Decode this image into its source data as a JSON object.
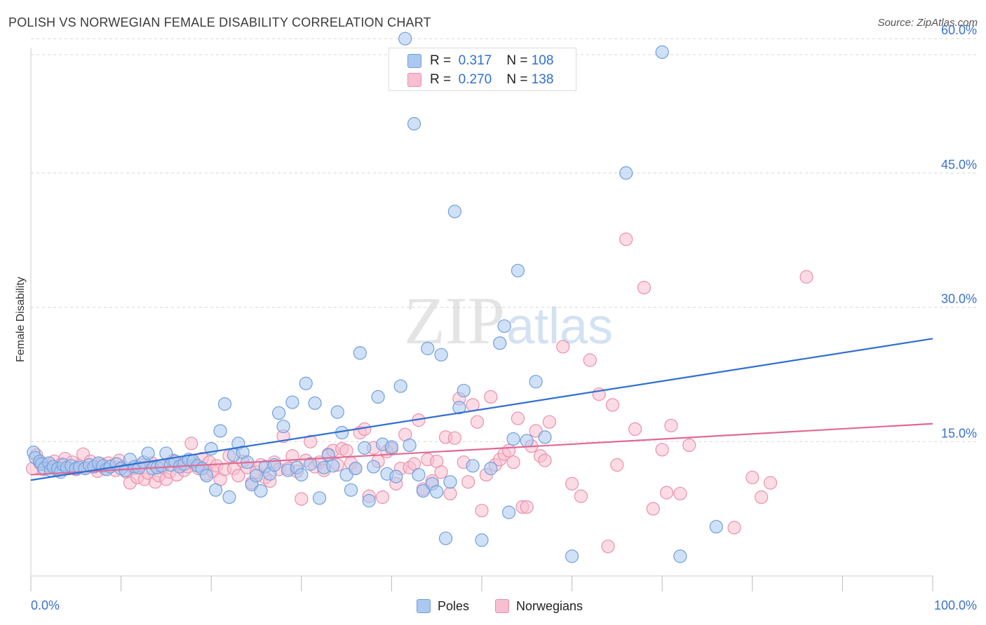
{
  "header": {
    "title": "POLISH VS NORWEGIAN FEMALE DISABILITY CORRELATION CHART",
    "source": "Source: ZipAtlas.com"
  },
  "watermark": {
    "zip": "ZIP",
    "atlas": "atlas"
  },
  "colors": {
    "poles_fill": "#aac8f0",
    "poles_stroke": "#6f9fdc",
    "poles_line": "#2f6fd1",
    "norw_fill": "#f7bfd0",
    "norw_stroke": "#ec8fab",
    "norw_line": "#e06a95",
    "tick_label": "#3a72cc",
    "grid": "#d8d8d8"
  },
  "legend_top": {
    "poles": {
      "r_label": "R =",
      "r_value": "0.317",
      "n_label": "N =",
      "n_value": "108"
    },
    "norwegians": {
      "r_label": "R =",
      "r_value": "0.270",
      "n_label": "N =",
      "n_value": "138"
    }
  },
  "legend_bottom": {
    "poles": "Poles",
    "norwegians": "Norwegians"
  },
  "chart_data": {
    "type": "scatter",
    "title": "POLISH VS NORWEGIAN FEMALE DISABILITY CORRELATION CHART",
    "xlabel": "",
    "ylabel": "Female Disability",
    "xlim": [
      0,
      100
    ],
    "ylim": [
      0,
      62
    ],
    "x_tick_labels": [
      "0.0%",
      "100.0%"
    ],
    "y_ticks": [
      15,
      30,
      45,
      60
    ],
    "y_tick_labels": [
      "15.0%",
      "30.0%",
      "45.0%",
      "60.0%"
    ],
    "grid": "horizontal dashed",
    "legend_placement": "top-center and bottom",
    "series": [
      {
        "name": "Poles",
        "R": 0.317,
        "N": 108,
        "trend": {
          "x": [
            0,
            100
          ],
          "y": [
            10.7,
            26.5
          ]
        },
        "points": [
          [
            0.3,
            13.8
          ],
          [
            0.5,
            13.2
          ],
          [
            1,
            12.8
          ],
          [
            1.2,
            12.5
          ],
          [
            1.5,
            12.0
          ],
          [
            2,
            12.6
          ],
          [
            2.2,
            11.8
          ],
          [
            2.5,
            12.2
          ],
          [
            3,
            12.0
          ],
          [
            3.3,
            11.6
          ],
          [
            3.6,
            12.4
          ],
          [
            4,
            12.1
          ],
          [
            4.5,
            12.3
          ],
          [
            5,
            12.0
          ],
          [
            5.4,
            12.1
          ],
          [
            6,
            12.0
          ],
          [
            6.5,
            12.4
          ],
          [
            7,
            12.2
          ],
          [
            7.5,
            12.6
          ],
          [
            8,
            12.3
          ],
          [
            8.4,
            11.9
          ],
          [
            8.8,
            12.2
          ],
          [
            9.5,
            12.5
          ],
          [
            10,
            12.0
          ],
          [
            10.5,
            11.8
          ],
          [
            11,
            13.0
          ],
          [
            11.5,
            12.2
          ],
          [
            12,
            12.1
          ],
          [
            12.5,
            12.7
          ],
          [
            13,
            13.7
          ],
          [
            13.5,
            12.0
          ],
          [
            14,
            12.1
          ],
          [
            14.5,
            12.3
          ],
          [
            15,
            13.7
          ],
          [
            15.5,
            12.4
          ],
          [
            16,
            12.8
          ],
          [
            16.5,
            12.2
          ],
          [
            17,
            12.5
          ],
          [
            17.5,
            13.0
          ],
          [
            18,
            12.8
          ],
          [
            18.5,
            12.3
          ],
          [
            19,
            12.0
          ],
          [
            19.5,
            11.2
          ],
          [
            20,
            14.2
          ],
          [
            20.5,
            9.6
          ],
          [
            21,
            16.2
          ],
          [
            21.5,
            19.2
          ],
          [
            22,
            8.8
          ],
          [
            22.5,
            13.5
          ],
          [
            23,
            14.8
          ],
          [
            23.5,
            13.8
          ],
          [
            24,
            12.7
          ],
          [
            24.5,
            10.2
          ],
          [
            25,
            11.2
          ],
          [
            25.5,
            9.5
          ],
          [
            26,
            12.2
          ],
          [
            26.5,
            11.4
          ],
          [
            27,
            12.4
          ],
          [
            27.5,
            18.2
          ],
          [
            28,
            16.7
          ],
          [
            28.5,
            11.8
          ],
          [
            29,
            19.4
          ],
          [
            29.5,
            12.1
          ],
          [
            30,
            11.3
          ],
          [
            30.5,
            21.5
          ],
          [
            31,
            12.5
          ],
          [
            31.5,
            19.3
          ],
          [
            32,
            8.7
          ],
          [
            32.5,
            12.1
          ],
          [
            33,
            13.5
          ],
          [
            33.5,
            12.3
          ],
          [
            34,
            18.3
          ],
          [
            34.5,
            16.0
          ],
          [
            35,
            11.3
          ],
          [
            35.5,
            9.6
          ],
          [
            36,
            12.0
          ],
          [
            36.5,
            24.9
          ],
          [
            37,
            14.3
          ],
          [
            37.5,
            8.4
          ],
          [
            38,
            12.2
          ],
          [
            38.5,
            20.0
          ],
          [
            39,
            14.7
          ],
          [
            39.5,
            11.4
          ],
          [
            40,
            14.4
          ],
          [
            40.5,
            11.1
          ],
          [
            41,
            21.2
          ],
          [
            41.5,
            60.0
          ],
          [
            42,
            14.6
          ],
          [
            42.5,
            50.5
          ],
          [
            43,
            11.3
          ],
          [
            43.5,
            9.5
          ],
          [
            44,
            25.4
          ],
          [
            44.5,
            10.3
          ],
          [
            45,
            9.4
          ],
          [
            45.5,
            24.7
          ],
          [
            46,
            4.2
          ],
          [
            46.5,
            10.5
          ],
          [
            47,
            40.7
          ],
          [
            47.5,
            18.8
          ],
          [
            48,
            20.7
          ],
          [
            49,
            12.3
          ],
          [
            50,
            4.0
          ],
          [
            51,
            12.0
          ],
          [
            52,
            26.0
          ],
          [
            52.5,
            27.9
          ],
          [
            53,
            7.1
          ],
          [
            53.5,
            15.3
          ],
          [
            54,
            34.1
          ],
          [
            55,
            15.1
          ],
          [
            56,
            21.7
          ],
          [
            57,
            15.5
          ],
          [
            60,
            2.2
          ],
          [
            66,
            45.0
          ],
          [
            70,
            58.5
          ],
          [
            72,
            2.2
          ],
          [
            76,
            5.5
          ]
        ]
      },
      {
        "name": "Norwegians",
        "R": 0.27,
        "N": 138,
        "trend": {
          "x": [
            0,
            100
          ],
          "y": [
            11.3,
            17.0
          ]
        },
        "points": [
          [
            0.2,
            12.0
          ],
          [
            0.6,
            13.5
          ],
          [
            1,
            12.6
          ],
          [
            1.4,
            11.9
          ],
          [
            1.8,
            12.4
          ],
          [
            2.2,
            12.1
          ],
          [
            2.6,
            12.8
          ],
          [
            3,
            11.8
          ],
          [
            3.4,
            12.5
          ],
          [
            3.8,
            13.1
          ],
          [
            4.2,
            12.0
          ],
          [
            4.6,
            12.7
          ],
          [
            5,
            11.9
          ],
          [
            5.4,
            12.3
          ],
          [
            5.8,
            13.6
          ],
          [
            6.2,
            12.1
          ],
          [
            6.6,
            12.8
          ],
          [
            7,
            12.2
          ],
          [
            7.4,
            11.7
          ],
          [
            7.8,
            12.5
          ],
          [
            8.2,
            12.0
          ],
          [
            8.6,
            12.6
          ],
          [
            9,
            12.3
          ],
          [
            9.4,
            11.8
          ],
          [
            9.8,
            12.9
          ],
          [
            10.2,
            12.2
          ],
          [
            10.6,
            11.6
          ],
          [
            11,
            10.4
          ],
          [
            11.4,
            12.0
          ],
          [
            11.8,
            11.0
          ],
          [
            12.2,
            12.4
          ],
          [
            12.6,
            10.8
          ],
          [
            13,
            11.5
          ],
          [
            13.4,
            12.6
          ],
          [
            13.8,
            10.5
          ],
          [
            14.2,
            11.2
          ],
          [
            14.6,
            12.1
          ],
          [
            15,
            10.8
          ],
          [
            15.4,
            11.6
          ],
          [
            15.8,
            12.9
          ],
          [
            16.2,
            11.3
          ],
          [
            16.6,
            12.4
          ],
          [
            17,
            11.8
          ],
          [
            17.4,
            12.2
          ],
          [
            17.8,
            14.8
          ],
          [
            18.2,
            12.5
          ],
          [
            18.6,
            12.0
          ],
          [
            19,
            13.1
          ],
          [
            19.4,
            11.4
          ],
          [
            19.8,
            12.7
          ],
          [
            20.2,
            11.7
          ],
          [
            20.6,
            12.3
          ],
          [
            21,
            10.8
          ],
          [
            21.5,
            11.9
          ],
          [
            22,
            13.4
          ],
          [
            22.5,
            12.0
          ],
          [
            23,
            11.2
          ],
          [
            23.5,
            12.8
          ],
          [
            24,
            12.1
          ],
          [
            24.5,
            10.4
          ],
          [
            25,
            11.6
          ],
          [
            25.5,
            12.4
          ],
          [
            26,
            11.0
          ],
          [
            26.5,
            10.6
          ],
          [
            27,
            12.7
          ],
          [
            27.5,
            11.9
          ],
          [
            28,
            15.6
          ],
          [
            28.5,
            12.0
          ],
          [
            29,
            13.4
          ],
          [
            29.5,
            11.7
          ],
          [
            30,
            8.6
          ],
          [
            30.5,
            12.9
          ],
          [
            31,
            15.0
          ],
          [
            31.5,
            12.2
          ],
          [
            32,
            12.7
          ],
          [
            32.5,
            11.8
          ],
          [
            33,
            13.6
          ],
          [
            33.5,
            14.0
          ],
          [
            34,
            12.4
          ],
          [
            34.5,
            14.2
          ],
          [
            35,
            14.0
          ],
          [
            35.5,
            12.6
          ],
          [
            36,
            12.0
          ],
          [
            36.5,
            16.0
          ],
          [
            37,
            16.4
          ],
          [
            37.5,
            8.9
          ],
          [
            38,
            14.3
          ],
          [
            38.5,
            12.8
          ],
          [
            39,
            8.8
          ],
          [
            39.5,
            13.9
          ],
          [
            40,
            14.2
          ],
          [
            40.5,
            10.3
          ],
          [
            41,
            12.0
          ],
          [
            41.5,
            15.8
          ],
          [
            42,
            12.1
          ],
          [
            42.5,
            12.5
          ],
          [
            43,
            17.4
          ],
          [
            43.5,
            9.7
          ],
          [
            44,
            13.0
          ],
          [
            44.5,
            10.6
          ],
          [
            45,
            12.8
          ],
          [
            45.5,
            11.6
          ],
          [
            46,
            15.5
          ],
          [
            46.5,
            9.2
          ],
          [
            47,
            15.4
          ],
          [
            47.5,
            19.8
          ],
          [
            48,
            12.7
          ],
          [
            48.5,
            10.5
          ],
          [
            49,
            19.1
          ],
          [
            49.5,
            17.2
          ],
          [
            50,
            7.3
          ],
          [
            50.5,
            11.3
          ],
          [
            51,
            20.0
          ],
          [
            51.5,
            12.4
          ],
          [
            52,
            13.0
          ],
          [
            52.5,
            13.6
          ],
          [
            53,
            14.0
          ],
          [
            53.5,
            12.7
          ],
          [
            54,
            17.6
          ],
          [
            54.5,
            7.7
          ],
          [
            55,
            7.7
          ],
          [
            55.5,
            14.5
          ],
          [
            56,
            16.2
          ],
          [
            56.5,
            13.4
          ],
          [
            57,
            12.9
          ],
          [
            57.5,
            17.2
          ],
          [
            59,
            25.6
          ],
          [
            60,
            10.3
          ],
          [
            61,
            8.9
          ],
          [
            62,
            24.1
          ],
          [
            63,
            20.3
          ],
          [
            64,
            3.3
          ],
          [
            64.5,
            19.1
          ],
          [
            65,
            12.4
          ],
          [
            66,
            37.6
          ],
          [
            67,
            16.4
          ],
          [
            68,
            32.2
          ],
          [
            69,
            7.5
          ],
          [
            70,
            14.1
          ],
          [
            70.5,
            9.3
          ],
          [
            71,
            16.8
          ],
          [
            72,
            9.2
          ],
          [
            73,
            14.6
          ],
          [
            78,
            5.4
          ],
          [
            80,
            11.0
          ],
          [
            81,
            8.8
          ],
          [
            82,
            10.4
          ],
          [
            86,
            33.4
          ]
        ]
      }
    ]
  }
}
